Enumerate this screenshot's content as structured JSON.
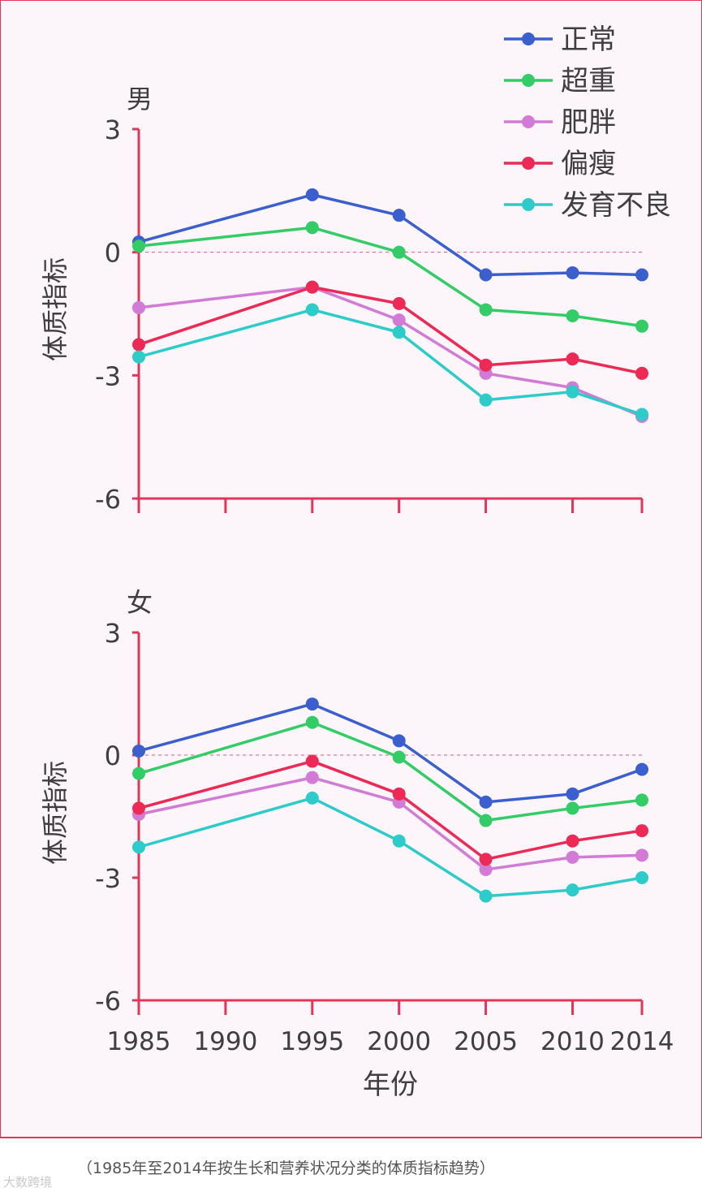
{
  "caption": "（1985年至2014年按生长和营养状况分类的体质指标趋势）",
  "watermark": "大数跨境",
  "colors": {
    "axis": "#e0365a",
    "zero_line": "#e0365a",
    "text": "#3f3f3f",
    "background": "#fcf5f9"
  },
  "chart_data": [
    {
      "type": "line",
      "panel": "male",
      "title": "男",
      "ylabel": "体质指标",
      "xlabel": "",
      "x": [
        1985,
        1995,
        2000,
        2005,
        2010,
        2014
      ],
      "x_ticks": [
        "1985",
        "1990",
        "1995",
        "2000",
        "2005",
        "2010",
        "2014"
      ],
      "ylim": [
        -6,
        3
      ],
      "y_ticks": [
        "3",
        "0",
        "-3",
        "-6"
      ],
      "zero_line": "dashed",
      "legend_position": "top-right",
      "series": [
        {
          "name": "正常",
          "color": "#3b5fcf",
          "values": [
            0.25,
            1.4,
            0.9,
            -0.55,
            -0.5,
            -0.55
          ]
        },
        {
          "name": "超重",
          "color": "#33cc66",
          "values": [
            0.15,
            0.6,
            0.0,
            -1.4,
            -1.55,
            -1.8
          ]
        },
        {
          "name": "肥胖",
          "color": "#d27bd6",
          "values": [
            -1.35,
            -0.85,
            -1.65,
            -2.95,
            -3.3,
            -4.0
          ]
        },
        {
          "name": "偏瘦",
          "color": "#ec2a55",
          "values": [
            -2.25,
            -0.85,
            -1.25,
            -2.75,
            -2.6,
            -2.95
          ]
        },
        {
          "name": "发育不良",
          "color": "#2ecbcb",
          "values": [
            -2.55,
            -1.4,
            -1.95,
            -3.6,
            -3.4,
            -3.95
          ]
        }
      ]
    },
    {
      "type": "line",
      "panel": "female",
      "title": "女",
      "ylabel": "体质指标",
      "xlabel": "年份",
      "x": [
        1985,
        1995,
        2000,
        2005,
        2010,
        2014
      ],
      "x_ticks": [
        "1985",
        "1990",
        "1995",
        "2000",
        "2005",
        "2010",
        "2014"
      ],
      "ylim": [
        -6,
        3
      ],
      "y_ticks": [
        "3",
        "0",
        "-3",
        "-6"
      ],
      "zero_line": "dashed",
      "series": [
        {
          "name": "正常",
          "color": "#3b5fcf",
          "values": [
            0.1,
            1.25,
            0.35,
            -1.15,
            -0.95,
            -0.35
          ]
        },
        {
          "name": "超重",
          "color": "#33cc66",
          "values": [
            -0.45,
            0.8,
            -0.05,
            -1.6,
            -1.3,
            -1.1
          ]
        },
        {
          "name": "肥胖",
          "color": "#d27bd6",
          "values": [
            -1.45,
            -0.55,
            -1.15,
            -2.8,
            -2.5,
            -2.45
          ]
        },
        {
          "name": "偏瘦",
          "color": "#ec2a55",
          "values": [
            -1.3,
            -0.15,
            -0.95,
            -2.55,
            -2.1,
            -1.85
          ]
        },
        {
          "name": "发育不良",
          "color": "#2ecbcb",
          "values": [
            -2.25,
            -1.05,
            -2.1,
            -3.45,
            -3.3,
            -3.0
          ]
        }
      ]
    }
  ]
}
